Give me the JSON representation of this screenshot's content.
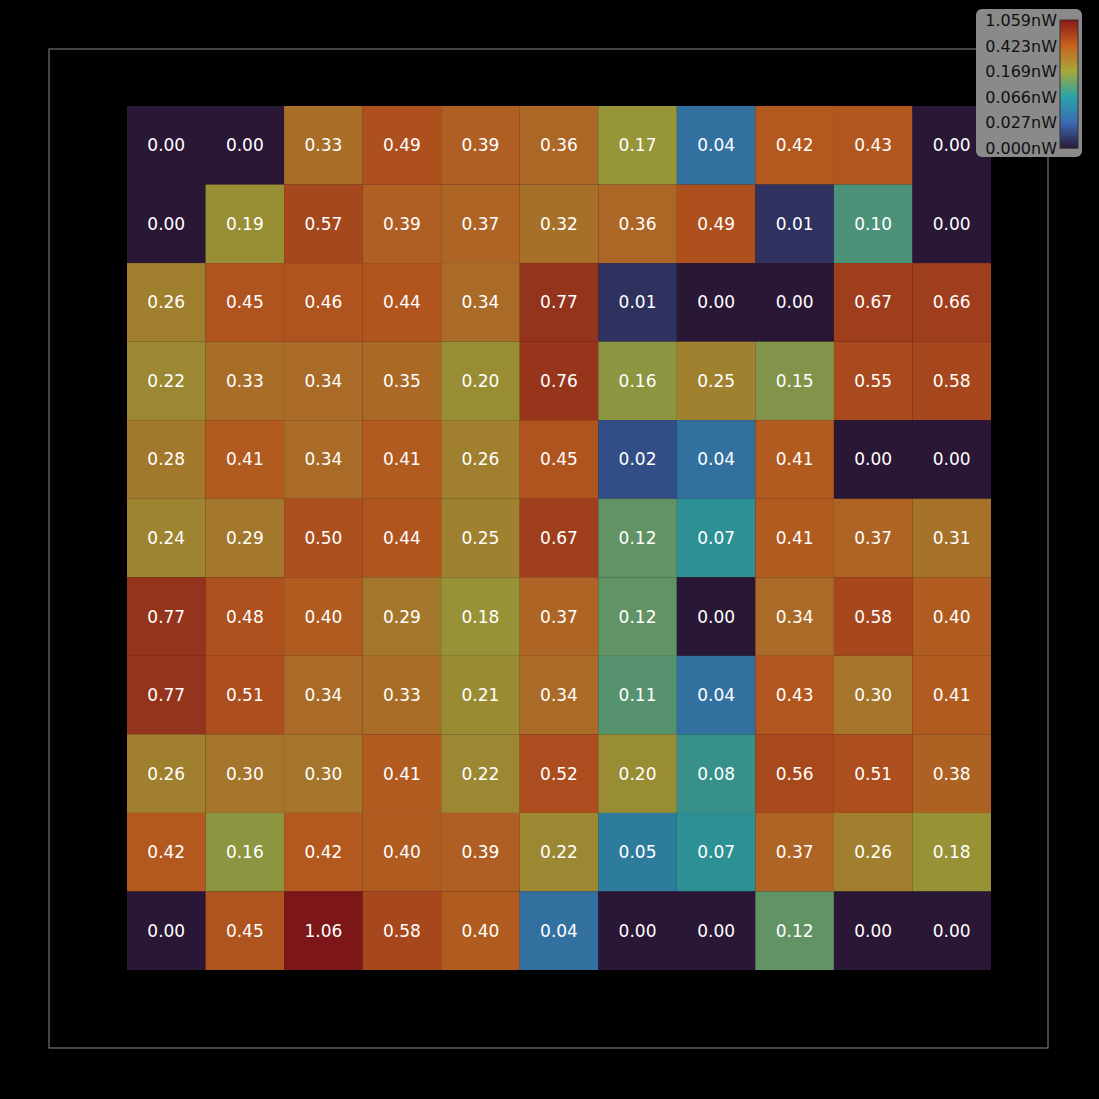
{
  "chart_data": {
    "type": "heatmap",
    "data_labels": true,
    "tick_labels": false,
    "cells": [
      [
        0.0,
        0.0,
        0.33,
        0.49,
        0.39,
        0.36,
        0.17,
        0.04,
        0.42,
        0.43,
        0.0
      ],
      [
        0.0,
        0.19,
        0.57,
        0.39,
        0.37,
        0.32,
        0.36,
        0.49,
        0.01,
        0.1,
        0.0
      ],
      [
        0.26,
        0.45,
        0.46,
        0.44,
        0.34,
        0.77,
        0.01,
        0.0,
        0.0,
        0.67,
        0.66
      ],
      [
        0.22,
        0.33,
        0.34,
        0.35,
        0.2,
        0.76,
        0.16,
        0.25,
        0.15,
        0.55,
        0.58
      ],
      [
        0.28,
        0.41,
        0.34,
        0.41,
        0.26,
        0.45,
        0.02,
        0.04,
        0.41,
        0.0,
        0.0
      ],
      [
        0.24,
        0.29,
        0.5,
        0.44,
        0.25,
        0.67,
        0.12,
        0.07,
        0.41,
        0.37,
        0.31
      ],
      [
        0.77,
        0.48,
        0.4,
        0.29,
        0.18,
        0.37,
        0.12,
        0.0,
        0.34,
        0.58,
        0.4
      ],
      [
        0.77,
        0.51,
        0.34,
        0.33,
        0.21,
        0.34,
        0.11,
        0.04,
        0.43,
        0.3,
        0.41
      ],
      [
        0.26,
        0.3,
        0.3,
        0.41,
        0.22,
        0.52,
        0.2,
        0.08,
        0.56,
        0.51,
        0.38
      ],
      [
        0.42,
        0.16,
        0.42,
        0.4,
        0.39,
        0.22,
        0.05,
        0.07,
        0.37,
        0.26,
        0.18
      ],
      [
        0.0,
        0.45,
        1.06,
        0.58,
        0.4,
        0.04,
        0.0,
        0.0,
        0.12,
        0.0,
        0.0
      ]
    ],
    "value_labels": [
      [
        "0.00",
        "0.00",
        "0.33",
        "0.49",
        "0.39",
        "0.36",
        "0.17",
        "0.04",
        "0.42",
        "0.43",
        "0.00"
      ],
      [
        "0.00",
        "0.19",
        "0.57",
        "0.39",
        "0.37",
        "0.32",
        "0.36",
        "0.49",
        "0.01",
        "0.10",
        "0.00"
      ],
      [
        "0.26",
        "0.45",
        "0.46",
        "0.44",
        "0.34",
        "0.77",
        "0.01",
        "0.00",
        "0.00",
        "0.67",
        "0.66"
      ],
      [
        "0.22",
        "0.33",
        "0.34",
        "0.35",
        "0.20",
        "0.76",
        "0.16",
        "0.25",
        "0.15",
        "0.55",
        "0.58"
      ],
      [
        "0.28",
        "0.41",
        "0.34",
        "0.41",
        "0.26",
        "0.45",
        "0.02",
        "0.04",
        "0.41",
        "0.00",
        "0.00"
      ],
      [
        "0.24",
        "0.29",
        "0.50",
        "0.44",
        "0.25",
        "0.67",
        "0.12",
        "0.07",
        "0.41",
        "0.37",
        "0.31"
      ],
      [
        "0.77",
        "0.48",
        "0.40",
        "0.29",
        "0.18",
        "0.37",
        "0.12",
        "0.00",
        "0.34",
        "0.58",
        "0.40"
      ],
      [
        "0.77",
        "0.51",
        "0.34",
        "0.33",
        "0.21",
        "0.34",
        "0.11",
        "0.04",
        "0.43",
        "0.30",
        "0.41"
      ],
      [
        "0.26",
        "0.30",
        "0.30",
        "0.41",
        "0.22",
        "0.52",
        "0.20",
        "0.08",
        "0.56",
        "0.51",
        "0.38"
      ],
      [
        "0.42",
        "0.16",
        "0.42",
        "0.40",
        "0.39",
        "0.22",
        "0.05",
        "0.07",
        "0.37",
        "0.26",
        "0.18"
      ],
      [
        "0.00",
        "0.45",
        "1.06",
        "0.58",
        "0.40",
        "0.04",
        "0.00",
        "0.00",
        "0.12",
        "0.00",
        "0.00"
      ]
    ],
    "colorbar": {
      "range": [
        0,
        1.059
      ],
      "ticks": [
        {
          "value": 0,
          "label": "0.000nW"
        },
        {
          "value": 0.027,
          "label": "0.027nW"
        },
        {
          "value": 0.066,
          "label": "0.066nW"
        },
        {
          "value": 0.169,
          "label": "0.169nW"
        },
        {
          "value": 0.423,
          "label": "0.423nW"
        },
        {
          "value": 1.059,
          "label": "1.059nW"
        }
      ]
    }
  }
}
